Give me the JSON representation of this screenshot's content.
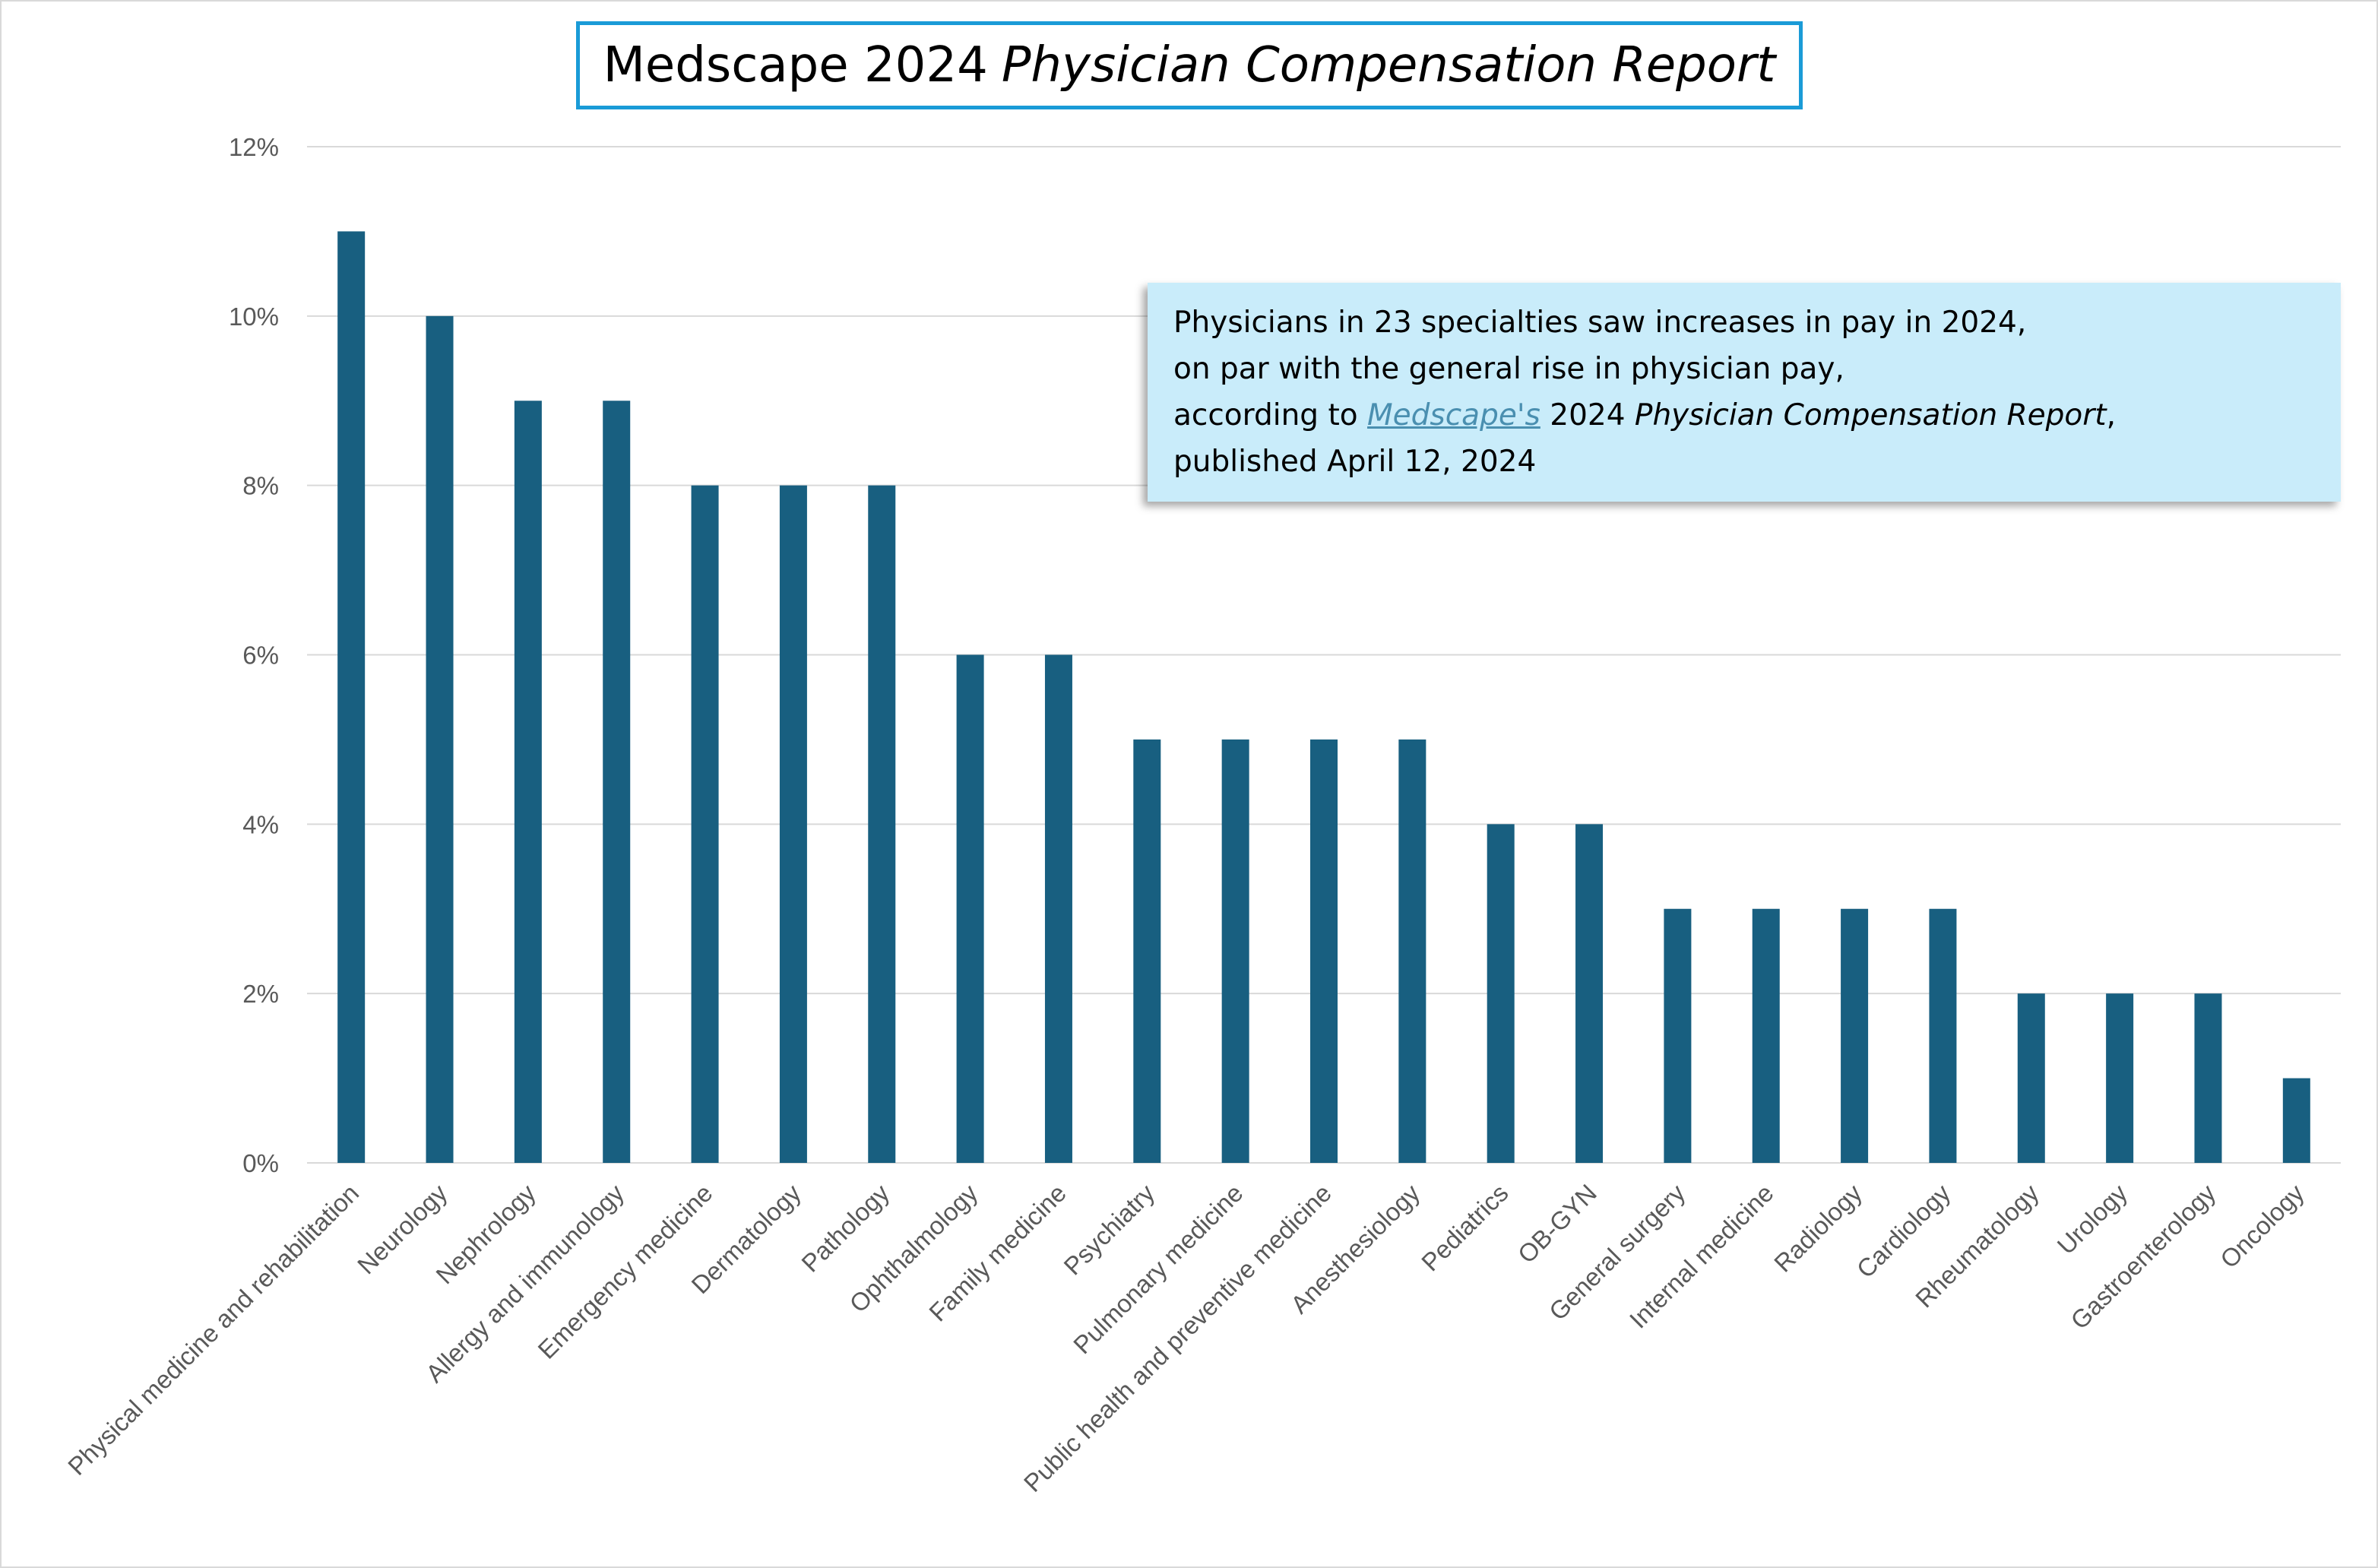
{
  "title": {
    "part1": "Medscape 2024",
    "part2": "Physician Compensation Report"
  },
  "callout": {
    "line1": "Physicians in 23 specialties saw increases in pay in 2024,",
    "line2": "on par with the general rise in physician pay,",
    "line3_pre": "according to ",
    "line3_link": "Medscape's",
    "line3_mid": " 2024 ",
    "line3_italic": "Physician Compensation Report",
    "line3_post": ",",
    "line4": "published April 12, 2024"
  },
  "colors": {
    "bar": "#185f80",
    "title_border": "#1a9bd7",
    "callout_bg": "#c9ecfa",
    "gridline": "#d9d9d9",
    "tick_text": "#595959"
  },
  "chart_data": {
    "type": "bar",
    "categories": [
      "Physical medicine and rehabilitation",
      "Neurology",
      "Nephrology",
      "Allergy and immunology",
      "Emergency medicine",
      "Dermatology",
      "Pathology",
      "Ophthalmology",
      "Family medicine",
      "Psychiatry",
      "Pulmonary medicine",
      "Public health and preventive medicine",
      "Anesthesiology",
      "Pediatrics",
      "OB-GYN",
      "General surgery",
      "Internal medicine",
      "Radiology",
      "Cardiology",
      "Rheumatology",
      "Urology",
      "Gastroenterology",
      "Oncology"
    ],
    "values": [
      11,
      10,
      9,
      9,
      8,
      8,
      8,
      6,
      6,
      5,
      5,
      5,
      5,
      4,
      4,
      3,
      3,
      3,
      3,
      2,
      2,
      2,
      1
    ],
    "ylim": [
      0,
      12
    ],
    "yticks": [
      "0%",
      "2%",
      "4%",
      "6%",
      "8%",
      "10%",
      "12%"
    ],
    "title": "Medscape 2024 Physician Compensation Report",
    "xlabel": "",
    "ylabel": "",
    "grid": true,
    "legend": "none"
  }
}
